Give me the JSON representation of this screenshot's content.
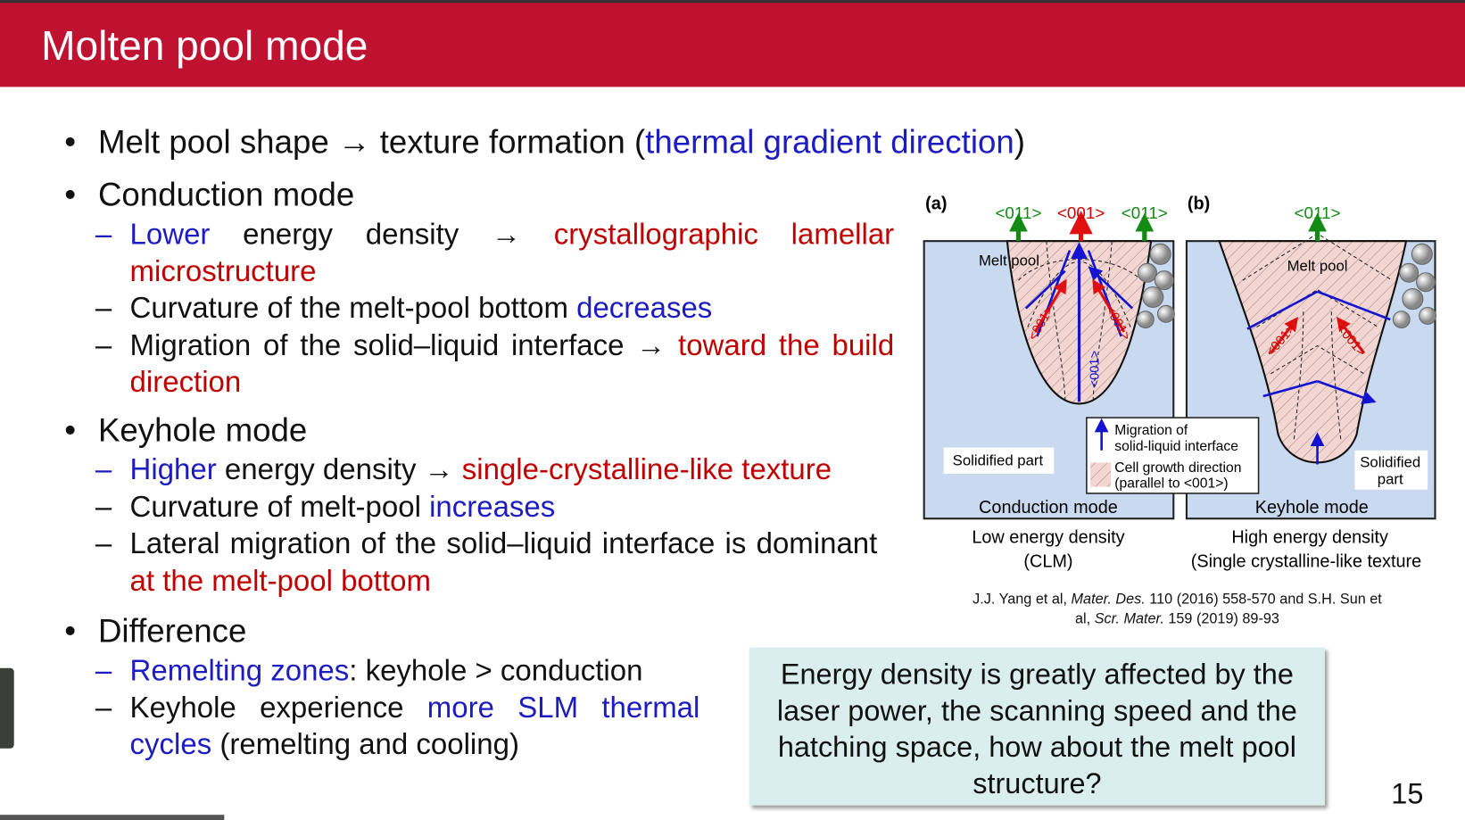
{
  "header": {
    "title": "Molten pool mode"
  },
  "bullets": [
    {
      "segments": [
        {
          "text": "Melt pool shape → texture formation ("
        },
        {
          "text": "thermal gradient direction",
          "color": "#1c1cc0"
        },
        {
          "text": ")"
        }
      ],
      "sub": []
    },
    {
      "segments": [
        {
          "text": "Conduction mode"
        }
      ],
      "sub": [
        {
          "segments": [
            {
              "text": "Lower",
              "color": "#1c1cc0"
            },
            {
              "text": " energy density → "
            },
            {
              "text": "crystallographic lamellar microstructure",
              "color": "#c00000"
            }
          ]
        },
        {
          "segments": [
            {
              "text": "Curvature of the melt-pool bottom "
            },
            {
              "text": "decreases",
              "color": "#1c1cc0"
            }
          ]
        },
        {
          "segments": [
            {
              "text": "Migration of the solid–liquid interface → "
            },
            {
              "text": "toward the build direction",
              "color": "#c00000"
            }
          ]
        }
      ]
    },
    {
      "segments": [
        {
          "text": "Keyhole mode"
        }
      ],
      "sub": [
        {
          "segments": [
            {
              "text": "Higher",
              "color": "#1c1cc0"
            },
            {
              "text": " energy density → "
            },
            {
              "text": "single-crystalline-like texture",
              "color": "#c00000"
            }
          ]
        },
        {
          "segments": [
            {
              "text": "Curvature of melt-pool "
            },
            {
              "text": "increases",
              "color": "#1c1cc0"
            }
          ]
        },
        {
          "segments": [
            {
              "text": "Lateral migration of the solid–liquid interface is dominant "
            },
            {
              "text": "at the melt-pool bottom",
              "color": "#c00000"
            }
          ]
        }
      ]
    },
    {
      "segments": [
        {
          "text": "Difference"
        }
      ],
      "sub": [
        {
          "segments": [
            {
              "text": "Remelting zones",
              "color": "#1c1cc0"
            },
            {
              "text": ": keyhole > conduction"
            }
          ]
        },
        {
          "segments": [
            {
              "text": "Keyhole experience "
            },
            {
              "text": "more SLM thermal cycles",
              "color": "#1c1cc0"
            },
            {
              "text": " (remelting and cooling)"
            }
          ]
        }
      ]
    }
  ],
  "figure": {
    "panel_a": {
      "tag": "(a)",
      "top_labels": [
        "<011>",
        "<001>",
        "<011>"
      ],
      "melt_pool": "Melt pool",
      "solidified": "Solidified part",
      "mode": "Conduction mode",
      "growth_labels": [
        "<001>",
        "<001>",
        "<001>"
      ],
      "caption": [
        "Low energy density",
        "(CLM)"
      ]
    },
    "panel_b": {
      "tag": "(b)",
      "top_labels": [
        "<011>"
      ],
      "melt_pool": "Melt pool",
      "solidified": [
        "Solidified",
        "part"
      ],
      "mode": "Keyhole mode",
      "growth_labels": [
        "<001>",
        "<001>"
      ],
      "caption": [
        "High energy density",
        "(Single crystalline-like texture"
      ]
    },
    "legend": {
      "migration": [
        "Migration of",
        "solid-liquid interface"
      ],
      "cell": [
        "Cell growth direction",
        "(parallel to <001>)"
      ]
    }
  },
  "citation": {
    "lines": [
      [
        {
          "text": "J.J. Yang et al, "
        },
        {
          "text": "Mater. Des.",
          "italic": true
        },
        {
          "text": " 110 (2016) 558-570 and S.H. Sun et"
        }
      ],
      [
        {
          "text": "al, "
        },
        {
          "text": "Scr. Mater.",
          "italic": true
        },
        {
          "text": " 159 (2019) 89-93"
        }
      ]
    ]
  },
  "callout": "Energy density is greatly affected by the laser power, the scanning speed and the hatching space, how about the melt pool structure?",
  "page_number": "15"
}
